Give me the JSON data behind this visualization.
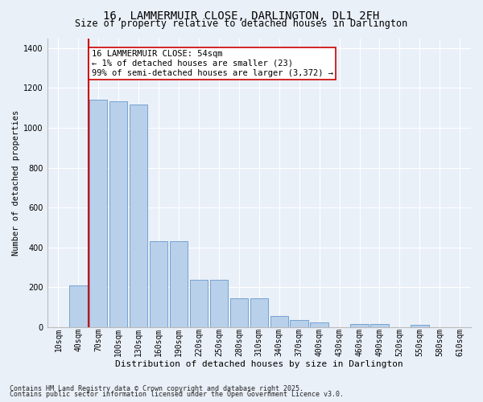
{
  "title": "16, LAMMERMUIR CLOSE, DARLINGTON, DL1 2FH",
  "subtitle": "Size of property relative to detached houses in Darlington",
  "xlabel": "Distribution of detached houses by size in Darlington",
  "ylabel": "Number of detached properties",
  "categories": [
    "10sqm",
    "40sqm",
    "70sqm",
    "100sqm",
    "130sqm",
    "160sqm",
    "190sqm",
    "220sqm",
    "250sqm",
    "280sqm",
    "310sqm",
    "340sqm",
    "370sqm",
    "400sqm",
    "430sqm",
    "460sqm",
    "490sqm",
    "520sqm",
    "550sqm",
    "580sqm",
    "610sqm"
  ],
  "values": [
    0,
    210,
    1140,
    1135,
    1115,
    430,
    430,
    235,
    235,
    145,
    145,
    55,
    35,
    23,
    0,
    15,
    15,
    0,
    10,
    0,
    0
  ],
  "bar_color": "#b8d0ea",
  "bar_edge_color": "#6699cc",
  "vline_x_index": 1.5,
  "vline_color": "#cc0000",
  "annotation_text": "16 LAMMERMUIR CLOSE: 54sqm\n← 1% of detached houses are smaller (23)\n99% of semi-detached houses are larger (3,372) →",
  "annotation_box_facecolor": "#ffffff",
  "annotation_box_edgecolor": "#cc0000",
  "ylim": [
    0,
    1450
  ],
  "yticks": [
    0,
    200,
    400,
    600,
    800,
    1000,
    1200,
    1400
  ],
  "footer1": "Contains HM Land Registry data © Crown copyright and database right 2025.",
  "footer2": "Contains public sector information licensed under the Open Government Licence v3.0.",
  "bg_color": "#eaf0f8",
  "grid_color": "#ffffff",
  "title_fontsize": 10,
  "subtitle_fontsize": 8.5,
  "xlabel_fontsize": 8,
  "ylabel_fontsize": 7.5,
  "tick_fontsize": 7,
  "annotation_fontsize": 7.5,
  "footer_fontsize": 6
}
